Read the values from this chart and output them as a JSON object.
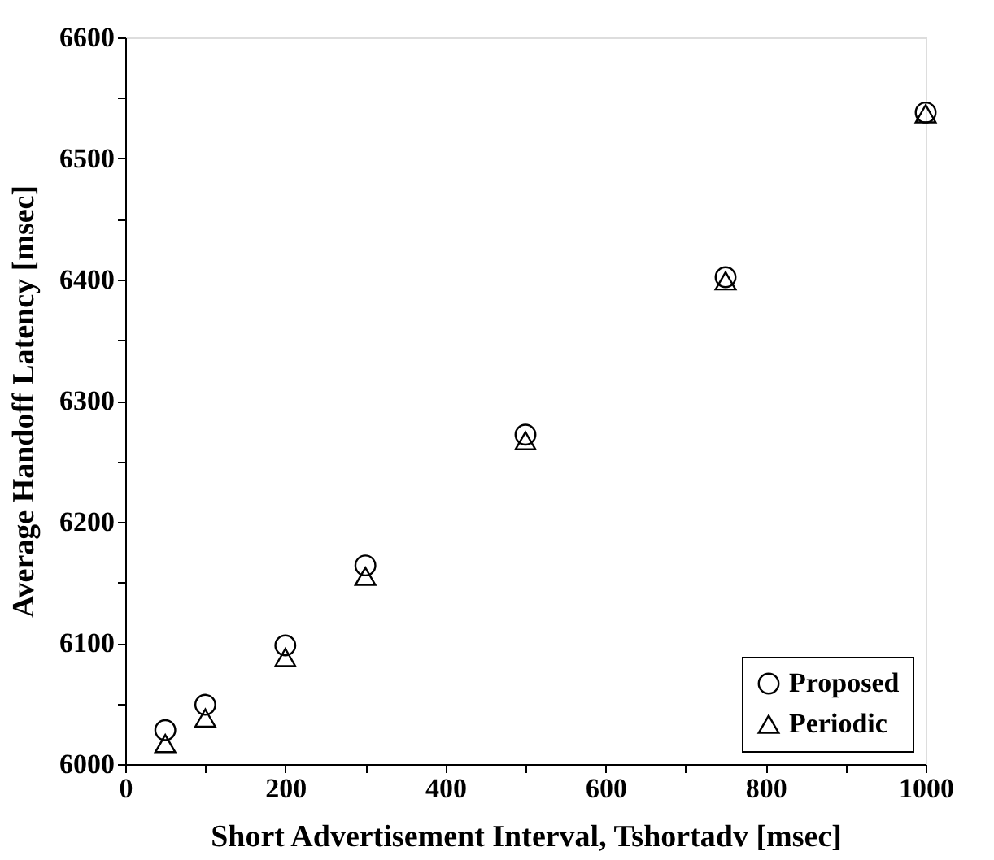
{
  "chart_data": {
    "type": "scatter",
    "xlabel": "Short Advertisement Interval, Tshortadv [msec]",
    "ylabel": "Average Handoff Latency [msec]",
    "x": [
      50,
      100,
      200,
      300,
      500,
      750,
      1000
    ],
    "series": [
      {
        "name": "Proposed",
        "color": "#000000",
        "marker": "circle",
        "values": [
          6028,
          6049,
          6098,
          6164,
          6272,
          6402,
          6538
        ]
      },
      {
        "name": "Periodic",
        "color": "#000000",
        "marker": "triangle",
        "values": [
          6017,
          6038,
          6088,
          6155,
          6267,
          6399,
          6537
        ]
      }
    ],
    "xlim": [
      0,
      1000
    ],
    "xticks": [
      0,
      {
        "value": 100,
        "label": null
      },
      200,
      {
        "value": 300,
        "label": null
      },
      400,
      {
        "value": 500,
        "label": null
      },
      600,
      {
        "value": 700,
        "label": null
      },
      800,
      {
        "value": 900,
        "label": null
      },
      1000
    ],
    "ylim": [
      6000,
      6600
    ],
    "yticks": [
      6000,
      {
        "value": 6050,
        "label": null
      },
      6100,
      {
        "value": 6150,
        "label": null
      },
      6200,
      {
        "value": 6250,
        "label": null
      },
      6300,
      {
        "value": 6350,
        "label": null
      },
      6400,
      {
        "value": 6450,
        "label": null
      },
      6500,
      {
        "value": 6550,
        "label": null
      },
      6600
    ],
    "grid": false,
    "legend": "bottom right"
  }
}
